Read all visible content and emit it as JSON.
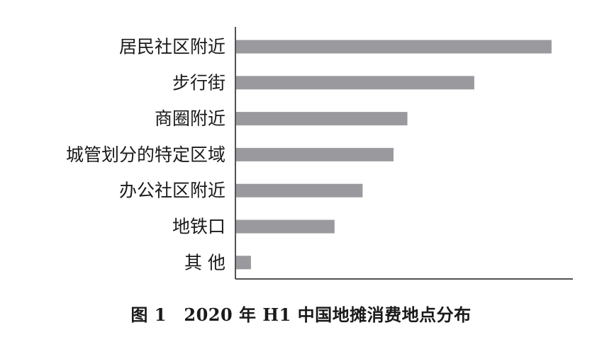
{
  "chart_data": {
    "type": "bar",
    "orientation": "horizontal",
    "categories": [
      "居民社区附近",
      "步行街",
      "商圈附近",
      "城管划分的特定区域",
      "办公社区附近",
      "地铁口",
      "其 他"
    ],
    "values": [
      100,
      75.5,
      54.3,
      49.9,
      40.1,
      31.2,
      4.7
    ],
    "xlim": [
      0,
      107
    ],
    "grid": false,
    "bar_color": "#9a9a9e",
    "axis_color": "#1a1a1a"
  },
  "caption": "图 1　2020 年 H1 中国地摊消费地点分布"
}
